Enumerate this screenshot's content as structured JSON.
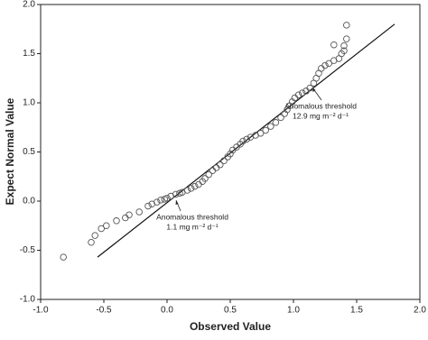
{
  "chart_data": {
    "type": "scatter",
    "x_label": "Observed Value",
    "y_label": "Expect Normal Value",
    "xlim": [
      -1.0,
      2.0
    ],
    "ylim": [
      -1.0,
      2.0
    ],
    "xticks": [
      {
        "value": -1.0,
        "label": "-1.0"
      },
      {
        "value": -0.5,
        "label": "-0.5"
      },
      {
        "value": 0.0,
        "label": "0.0"
      },
      {
        "value": 0.5,
        "label": "0.5"
      },
      {
        "value": 1.0,
        "label": "1.0"
      },
      {
        "value": 1.5,
        "label": "1.5"
      },
      {
        "value": 2.0,
        "label": "2.0"
      }
    ],
    "yticks": [
      {
        "value": -1.0,
        "label": "-1.0"
      },
      {
        "value": -0.5,
        "label": "-0.5"
      },
      {
        "value": 0.0,
        "label": "0.0"
      },
      {
        "value": 0.5,
        "label": "0.5"
      },
      {
        "value": 1.0,
        "label": "1.0"
      },
      {
        "value": 1.5,
        "label": "1.5"
      },
      {
        "value": 2.0,
        "label": "2.0"
      }
    ],
    "color": "#555555",
    "x": [
      -0.82,
      -0.6,
      -0.57,
      -0.52,
      -0.48,
      -0.4,
      -0.33,
      -0.3,
      -0.22,
      -0.15,
      -0.12,
      -0.08,
      -0.05,
      -0.02,
      0.0,
      0.03,
      0.07,
      0.1,
      0.12,
      0.16,
      0.19,
      0.22,
      0.25,
      0.28,
      0.3,
      0.33,
      0.36,
      0.39,
      0.42,
      0.45,
      0.48,
      0.5,
      0.52,
      0.55,
      0.58,
      0.6,
      0.63,
      0.66,
      0.7,
      0.74,
      0.78,
      0.82,
      0.86,
      0.9,
      0.93,
      0.95,
      0.97,
      0.99,
      1.01,
      1.04,
      1.07,
      1.1,
      1.13,
      1.16,
      1.18,
      1.2,
      1.22,
      1.25,
      1.28,
      1.32,
      1.36,
      1.38,
      1.4,
      1.4,
      1.32,
      1.42,
      1.42
    ],
    "y": [
      -0.57,
      -0.42,
      -0.35,
      -0.28,
      -0.25,
      -0.2,
      -0.17,
      -0.14,
      -0.11,
      -0.05,
      -0.03,
      -0.01,
      0.01,
      0.02,
      0.03,
      0.05,
      0.07,
      0.08,
      0.09,
      0.11,
      0.13,
      0.15,
      0.17,
      0.2,
      0.23,
      0.27,
      0.31,
      0.34,
      0.37,
      0.41,
      0.45,
      0.48,
      0.52,
      0.55,
      0.58,
      0.61,
      0.63,
      0.65,
      0.67,
      0.69,
      0.72,
      0.76,
      0.8,
      0.85,
      0.89,
      0.93,
      0.97,
      1.01,
      1.05,
      1.08,
      1.1,
      1.12,
      1.15,
      1.2,
      1.25,
      1.3,
      1.35,
      1.38,
      1.4,
      1.43,
      1.45,
      1.5,
      1.53,
      1.58,
      1.59,
      1.65,
      1.79
    ],
    "reference_line": {
      "x": [
        -0.55,
        1.8
      ],
      "y": [
        -0.57,
        1.8
      ]
    },
    "annotations": [
      {
        "lines": [
          "Anomalous threshold",
          "12.9 mg m⁻² d⁻¹"
        ]
      },
      {
        "lines": [
          "Anomalous threshold",
          "1.1 mg m⁻² d⁻¹"
        ]
      }
    ]
  }
}
